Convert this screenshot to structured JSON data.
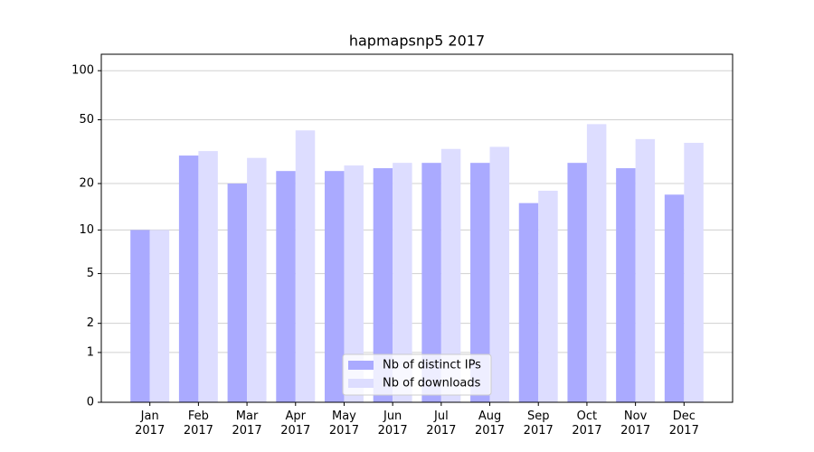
{
  "chart_data": {
    "type": "bar",
    "title": "hapmapsnp5 2017",
    "categories": [
      "Jan 2017",
      "Feb 2017",
      "Mar 2017",
      "Apr 2017",
      "May 2017",
      "Jun 2017",
      "Jul 2017",
      "Aug 2017",
      "Sep 2017",
      "Oct 2017",
      "Nov 2017",
      "Dec 2017"
    ],
    "series": [
      {
        "name": "Nb of distinct IPs",
        "color": "#aaaaff",
        "values": [
          10,
          30,
          20,
          24,
          24,
          25,
          27,
          27,
          15,
          27,
          25,
          17
        ]
      },
      {
        "name": "Nb of downloads",
        "color": "#ddddff",
        "values": [
          10,
          32,
          29,
          43,
          26,
          27,
          33,
          34,
          18,
          47,
          38,
          36
        ]
      }
    ],
    "yscale": "log1p",
    "ylim": [
      0,
      126
    ],
    "yticks": [
      0,
      1,
      2,
      5,
      10,
      20,
      50,
      100
    ],
    "grid": true,
    "legend": "lower center"
  }
}
